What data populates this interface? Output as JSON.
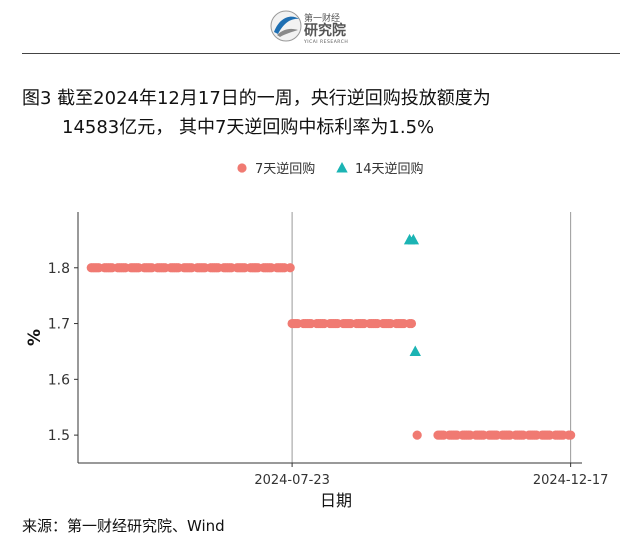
{
  "header": {
    "logo_line1": "第一财经",
    "logo_line2": "研究院",
    "logo_tag": "YICAI RESEARCH"
  },
  "title": {
    "line1": "图3  截至2024年12月17日的一周，央行逆回购投放额度为",
    "line2": "14583亿元， 其中7天逆回购中标利率为1.5%"
  },
  "chart_data": {
    "type": "scatter",
    "title": "",
    "xlabel": "日期",
    "ylabel": "%",
    "ylim": [
      1.45,
      1.9
    ],
    "xlim": [
      "2024-04-01",
      "2024-12-23"
    ],
    "y_ticks": [
      1.5,
      1.6,
      1.7,
      1.8
    ],
    "y_tick_labels": [
      "1.5",
      "1.6",
      "1.7",
      "1.8"
    ],
    "x_ticks": [
      "2024-07-23",
      "2024-12-17"
    ],
    "x_tick_labels": [
      "2024-07-23",
      "2024-12-17"
    ],
    "grid": "vertical-major",
    "legend": {
      "position": "top",
      "entries": [
        "7天逆回购",
        "14天逆回购"
      ]
    },
    "series": [
      {
        "name": "7天逆回购",
        "marker": "circle",
        "color": "#F07A72",
        "segments": [
          {
            "x_start": "2024-04-08",
            "x_end": "2024-07-22",
            "y": 1.8
          },
          {
            "x_start": "2024-07-23",
            "x_end": "2024-09-24",
            "y": 1.7
          },
          {
            "x_start": "2024-09-27",
            "x_end": "2024-09-27",
            "y": 1.5
          },
          {
            "x_start": "2024-10-08",
            "x_end": "2024-12-17",
            "y": 1.5
          }
        ]
      },
      {
        "name": "14天逆回购",
        "marker": "triangle",
        "color": "#1BB4B4",
        "points": [
          {
            "x": "2024-09-23",
            "y": 1.85
          },
          {
            "x": "2024-09-25",
            "y": 1.85
          },
          {
            "x": "2024-09-26",
            "y": 1.65
          }
        ]
      }
    ]
  },
  "source": "来源：第一财经研究院、Wind"
}
